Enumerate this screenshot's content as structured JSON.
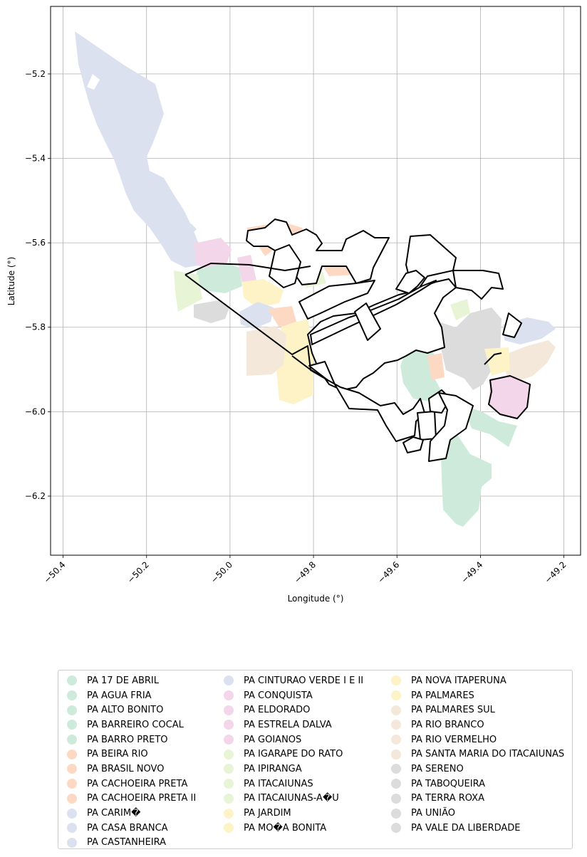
{
  "chart_data": {
    "type": "map",
    "title": "",
    "xlabel": "Longitude (°)",
    "ylabel": "Latitude (°)",
    "xlim": [
      -50.43,
      -49.16
    ],
    "ylim": [
      -6.34,
      -5.04
    ],
    "xticks": [
      -50.4,
      -50.2,
      -50.0,
      -49.8,
      -49.6,
      -49.4,
      -49.2
    ],
    "xtick_labels": [
      "−50.4",
      "−50.2",
      "−50.0",
      "−49.8",
      "−49.6",
      "−49.4",
      "−49.2"
    ],
    "yticks": [
      -5.2,
      -5.4,
      -5.6,
      -5.8,
      -6.0,
      -6.2
    ],
    "ytick_labels": [
      "−5.2",
      "−5.4",
      "−5.6",
      "−5.8",
      "−6.0",
      "−6.2"
    ],
    "grid": true,
    "legend_placement": "below",
    "palette": {
      "green": "#cdeadb",
      "orange": "#fdd9c4",
      "blue": "#dce1f0",
      "pink": "#f4d6ea",
      "lime": "#e7f5d6",
      "yellow": "#fdf3c6",
      "beige": "#f3e8da",
      "gray": "#dcdcdc",
      "outline": "#000000"
    },
    "legend": [
      {
        "label": "PA 17 DE ABRIL",
        "color": "#cdeadb"
      },
      {
        "label": "PA AGUA FRIA",
        "color": "#cdeadb"
      },
      {
        "label": "PA ALTO BONITO",
        "color": "#cdeadb"
      },
      {
        "label": "PA BARREIRO COCAL",
        "color": "#cdeadb"
      },
      {
        "label": "PA BARRO PRETO",
        "color": "#cdeadb"
      },
      {
        "label": "PA BEIRA RIO",
        "color": "#fdd9c4"
      },
      {
        "label": "PA BRASIL NOVO",
        "color": "#fdd9c4"
      },
      {
        "label": "PA CACHOEIRA PRETA",
        "color": "#fdd9c4"
      },
      {
        "label": "PA CACHOEIRA PRETA II",
        "color": "#fdd9c4"
      },
      {
        "label": "PA CARIM�",
        "color": "#dce1f0"
      },
      {
        "label": "PA CASA BRANCA",
        "color": "#dce1f0"
      },
      {
        "label": "PA CASTANHEIRA",
        "color": "#dce1f0"
      },
      {
        "label": "PA CINTURAO VERDE I E II",
        "color": "#dce1f0"
      },
      {
        "label": "PA CONQUISTA",
        "color": "#f4d6ea"
      },
      {
        "label": "PA ELDORADO",
        "color": "#f4d6ea"
      },
      {
        "label": "PA ESTRELA DALVA",
        "color": "#f4d6ea"
      },
      {
        "label": "PA GOIANOS",
        "color": "#f4d6ea"
      },
      {
        "label": "PA IGARAPE DO RATO",
        "color": "#e7f5d6"
      },
      {
        "label": "PA IPIRANGA",
        "color": "#e7f5d6"
      },
      {
        "label": "PA ITACAIUNAS",
        "color": "#e7f5d6"
      },
      {
        "label": "PA ITACAIUNAS-A�U",
        "color": "#e7f5d6"
      },
      {
        "label": "PA JARDIM",
        "color": "#fdf3c6"
      },
      {
        "label": "PA MO�A BONITA",
        "color": "#fdf3c6"
      },
      {
        "label": "PA NOVA ITAPERUNA",
        "color": "#fdf3c6"
      },
      {
        "label": "PA PALMARES",
        "color": "#fdf3c6"
      },
      {
        "label": "PA PALMARES SUL",
        "color": "#f3e8da"
      },
      {
        "label": "PA RIO BRANCO",
        "color": "#f3e8da"
      },
      {
        "label": "PA RIO VERMELHO",
        "color": "#f3e8da"
      },
      {
        "label": "PA SANTA MARIA DO ITACAIUNAS",
        "color": "#f3e8da"
      },
      {
        "label": "PA SERENO",
        "color": "#dcdcdc"
      },
      {
        "label": "PA TABOQUEIRA",
        "color": "#dcdcdc"
      },
      {
        "label": "PA TERRA ROXA",
        "color": "#dcdcdc"
      },
      {
        "label": "PA UNIÃO",
        "color": "#dcdcdc"
      },
      {
        "label": "PA VALE DA LIBERDADE",
        "color": "#dcdcdc"
      }
    ]
  }
}
